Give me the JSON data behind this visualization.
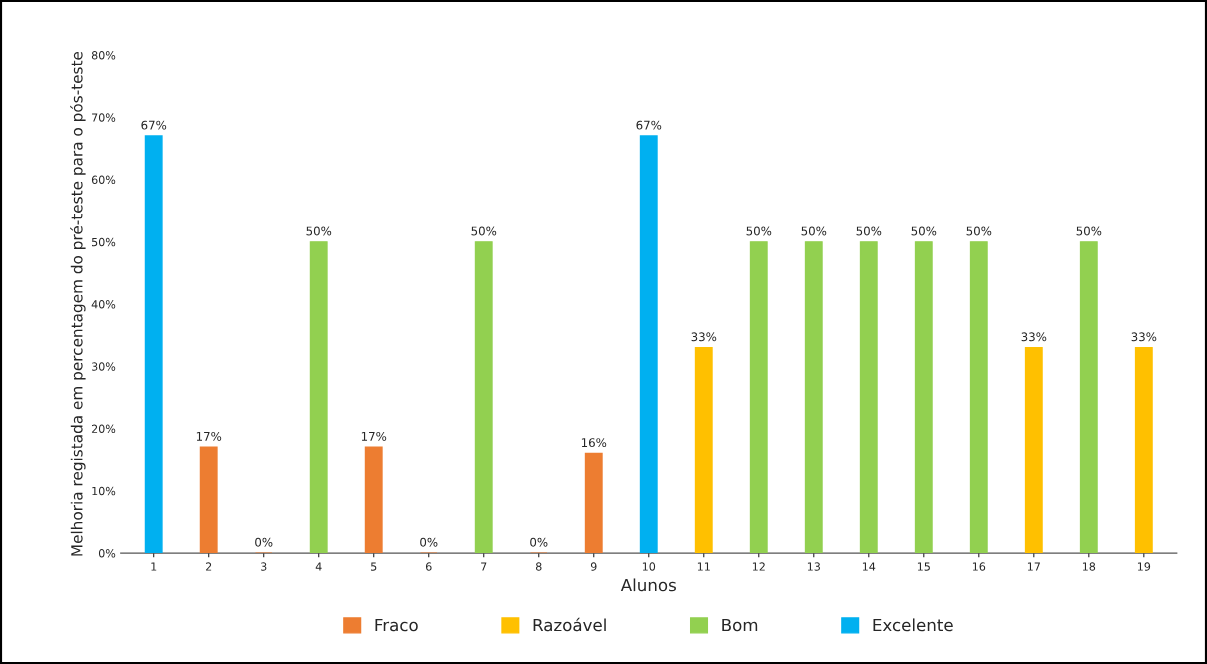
{
  "chart_data": {
    "type": "bar",
    "xlabel": "Alunos",
    "ylabel": "Melhoria registada em percentagem do pré-teste para o pós-teste",
    "categories": [
      "1",
      "2",
      "3",
      "4",
      "5",
      "6",
      "7",
      "8",
      "9",
      "10",
      "11",
      "12",
      "13",
      "14",
      "15",
      "16",
      "17",
      "18",
      "19"
    ],
    "series": [
      {
        "name": "Fraco",
        "color": "#ed7d31",
        "values": [
          null,
          17,
          0,
          null,
          17,
          0,
          null,
          0,
          16,
          null,
          null,
          null,
          null,
          null,
          null,
          null,
          null,
          null,
          null
        ],
        "value_labels": [
          null,
          "17%",
          "0%",
          null,
          "17%",
          "0%",
          null,
          "0%",
          "16%",
          null,
          null,
          null,
          null,
          null,
          null,
          null,
          null,
          null,
          null
        ]
      },
      {
        "name": "Razoável",
        "color": "#ffc000",
        "values": [
          null,
          null,
          null,
          null,
          null,
          null,
          null,
          null,
          null,
          null,
          33,
          null,
          null,
          null,
          null,
          null,
          33,
          null,
          33
        ],
        "value_labels": [
          null,
          null,
          null,
          null,
          null,
          null,
          null,
          null,
          null,
          null,
          "33%",
          null,
          null,
          null,
          null,
          null,
          "33%",
          null,
          "33%"
        ]
      },
      {
        "name": "Bom",
        "color": "#92d050",
        "values": [
          null,
          null,
          null,
          50,
          null,
          null,
          50,
          null,
          null,
          null,
          null,
          50,
          50,
          50,
          50,
          50,
          null,
          50,
          null
        ],
        "value_labels": [
          null,
          null,
          null,
          "50%",
          null,
          null,
          "50%",
          null,
          null,
          null,
          null,
          "50%",
          "50%",
          "50%",
          "50%",
          "50%",
          null,
          "50%",
          null
        ]
      },
      {
        "name": "Excelente",
        "color": "#00b0f0",
        "values": [
          67,
          null,
          null,
          null,
          null,
          null,
          null,
          null,
          null,
          67,
          null,
          null,
          null,
          null,
          null,
          null,
          null,
          null,
          null
        ],
        "value_labels": [
          "67%",
          null,
          null,
          null,
          null,
          null,
          null,
          null,
          null,
          "67%",
          null,
          null,
          null,
          null,
          null,
          null,
          null,
          null,
          null
        ]
      }
    ],
    "ylim": [
      0,
      80
    ],
    "yticks": [
      {
        "value": 0,
        "label": "0%"
      },
      {
        "value": 10,
        "label": "10%"
      },
      {
        "value": 20,
        "label": "20%"
      },
      {
        "value": 30,
        "label": "30%"
      },
      {
        "value": 40,
        "label": "40%"
      },
      {
        "value": 50,
        "label": "50%"
      },
      {
        "value": 60,
        "label": "60%"
      },
      {
        "value": 70,
        "label": "70%"
      },
      {
        "value": 80,
        "label": "80%"
      }
    ],
    "grid": false,
    "legend": "bottom"
  }
}
